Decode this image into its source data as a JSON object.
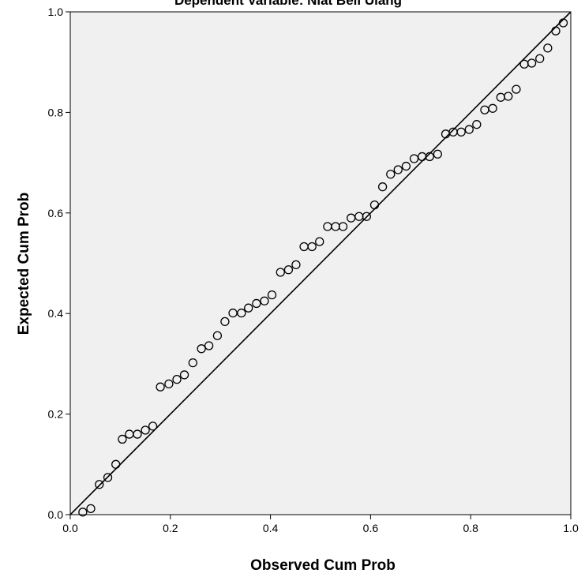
{
  "chart_data": {
    "type": "scatter",
    "title": "Dependent Variable: Niat Beli Ulang",
    "xlabel": "Observed Cum Prob",
    "ylabel": "Expected Cum Prob",
    "xlim": [
      0.0,
      1.0
    ],
    "ylim": [
      0.0,
      1.0
    ],
    "x_ticks": [
      "0.0",
      "0.2",
      "0.4",
      "0.6",
      "0.8",
      "1.0"
    ],
    "y_ticks": [
      "0.0",
      "0.2",
      "0.4",
      "0.6",
      "0.8",
      "1.0"
    ],
    "reference_line": {
      "from": [
        0.0,
        0.0
      ],
      "to": [
        1.0,
        1.0
      ]
    },
    "grid": false,
    "plot_background": "#f0f0f0",
    "marker": "open-circle",
    "points": [
      [
        0.025,
        0.005
      ],
      [
        0.041,
        0.012
      ],
      [
        0.058,
        0.06
      ],
      [
        0.075,
        0.074
      ],
      [
        0.091,
        0.1
      ],
      [
        0.104,
        0.15
      ],
      [
        0.118,
        0.16
      ],
      [
        0.134,
        0.16
      ],
      [
        0.15,
        0.168
      ],
      [
        0.165,
        0.176
      ],
      [
        0.18,
        0.254
      ],
      [
        0.197,
        0.26
      ],
      [
        0.213,
        0.269
      ],
      [
        0.228,
        0.278
      ],
      [
        0.245,
        0.302
      ],
      [
        0.262,
        0.33
      ],
      [
        0.277,
        0.336
      ],
      [
        0.294,
        0.356
      ],
      [
        0.309,
        0.384
      ],
      [
        0.325,
        0.401
      ],
      [
        0.342,
        0.401
      ],
      [
        0.356,
        0.411
      ],
      [
        0.372,
        0.42
      ],
      [
        0.388,
        0.425
      ],
      [
        0.403,
        0.437
      ],
      [
        0.42,
        0.482
      ],
      [
        0.436,
        0.487
      ],
      [
        0.451,
        0.497
      ],
      [
        0.467,
        0.533
      ],
      [
        0.483,
        0.533
      ],
      [
        0.498,
        0.543
      ],
      [
        0.514,
        0.573
      ],
      [
        0.53,
        0.573
      ],
      [
        0.545,
        0.573
      ],
      [
        0.561,
        0.59
      ],
      [
        0.577,
        0.593
      ],
      [
        0.592,
        0.593
      ],
      [
        0.608,
        0.616
      ],
      [
        0.624,
        0.652
      ],
      [
        0.64,
        0.677
      ],
      [
        0.655,
        0.686
      ],
      [
        0.671,
        0.693
      ],
      [
        0.687,
        0.708
      ],
      [
        0.703,
        0.712
      ],
      [
        0.718,
        0.712
      ],
      [
        0.734,
        0.717
      ],
      [
        0.75,
        0.757
      ],
      [
        0.765,
        0.761
      ],
      [
        0.781,
        0.761
      ],
      [
        0.797,
        0.766
      ],
      [
        0.812,
        0.776
      ],
      [
        0.828,
        0.805
      ],
      [
        0.844,
        0.808
      ],
      [
        0.86,
        0.83
      ],
      [
        0.875,
        0.832
      ],
      [
        0.891,
        0.846
      ],
      [
        0.907,
        0.896
      ],
      [
        0.922,
        0.898
      ],
      [
        0.938,
        0.907
      ],
      [
        0.954,
        0.928
      ],
      [
        0.97,
        0.962
      ],
      [
        0.985,
        0.978
      ]
    ]
  }
}
